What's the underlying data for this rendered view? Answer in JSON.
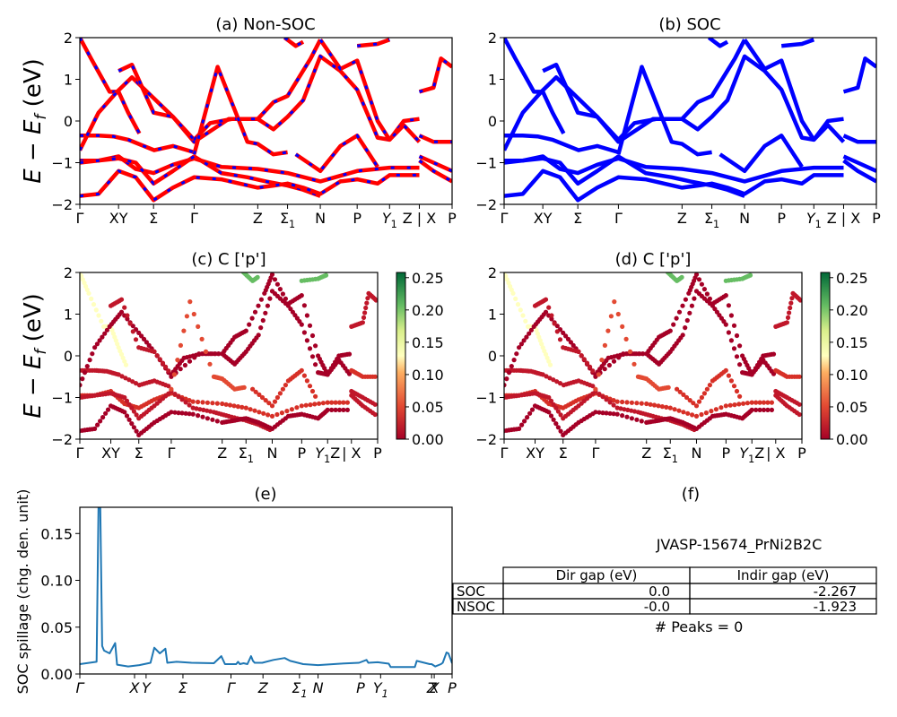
{
  "figure": {
    "ylabel_band": "E − E_f (eV)",
    "colors": {
      "nonsoc_solid": "#ff0000",
      "nonsoc_dash": "#0000ff",
      "soc": "#0000ff",
      "spillage": "#1f77b4"
    }
  },
  "chart_data": [
    {
      "id": "a",
      "type": "line",
      "title": "(a) Non-SOC",
      "ylabel": "E − E_f (eV)",
      "ylim": [
        -2,
        2
      ],
      "yticks": [
        -2,
        -1,
        0,
        1,
        2
      ],
      "xlim": [
        0,
        1
      ],
      "kpath_labels": [
        "Γ",
        "XY",
        "Σ",
        "Γ",
        "Z",
        "Σ1",
        "N",
        "P",
        "Y1",
        "Z | X",
        "P"
      ],
      "kpath_positions": [
        0.0,
        0.104,
        0.198,
        0.307,
        0.478,
        0.558,
        0.646,
        0.745,
        0.832,
        0.912,
        1.0
      ],
      "style": "red solid with blue dashes overlay",
      "bands": [
        {
          "x": [
            0,
            0.05,
            0.09,
            0.13,
            0.2,
            0.25,
            0.307
          ],
          "y": [
            -0.35,
            -0.35,
            -0.37,
            -0.45,
            -0.7,
            -0.6,
            -0.75
          ]
        },
        {
          "x": [
            0,
            0.05,
            0.104,
            0.15,
            0.198,
            0.25,
            0.307,
            0.38,
            0.478,
            0.558,
            0.646,
            0.745,
            0.832,
            0.912
          ],
          "y": [
            -0.95,
            -0.95,
            -0.85,
            -1.15,
            -1.25,
            -1.05,
            -0.9,
            -1.1,
            -1.15,
            -1.25,
            -1.45,
            -1.2,
            -1.12,
            -1.12
          ]
        },
        {
          "x": [
            0,
            0.05,
            0.104,
            0.15,
            0.198,
            0.25,
            0.307,
            0.38,
            0.45,
            0.5,
            0.558,
            0.6,
            0.646
          ],
          "y": [
            -1.0,
            -0.95,
            -0.9,
            -1.0,
            -1.5,
            -1.2,
            -0.85,
            -1.25,
            -1.35,
            -1.45,
            -1.55,
            -1.65,
            -1.8
          ]
        },
        {
          "x": [
            0,
            0.05,
            0.104,
            0.15,
            0.198,
            0.25,
            0.307,
            0.38,
            0.478,
            0.52,
            0.558,
            0.6,
            0.646,
            0.7,
            0.745,
            0.8,
            0.832,
            0.912
          ],
          "y": [
            -1.8,
            -1.75,
            -1.2,
            -1.35,
            -1.9,
            -1.6,
            -1.35,
            -1.4,
            -1.6,
            -1.55,
            -1.5,
            -1.6,
            -1.75,
            -1.45,
            -1.4,
            -1.5,
            -1.3,
            -1.3
          ]
        },
        {
          "x": [
            0,
            0.03,
            0.08,
            0.104,
            0.13,
            0.16
          ],
          "y": [
            2,
            1.5,
            0.7,
            0.7,
            0.2,
            -0.3
          ]
        },
        {
          "x": [
            0,
            0.05,
            0.1,
            0.14,
            0.198,
            0.25,
            0.307,
            0.4,
            0.478,
            0.52,
            0.558,
            0.62,
            0.646
          ],
          "y": [
            -0.7,
            0.2,
            0.7,
            1.05,
            0.55,
            0.1,
            -0.5,
            0.05,
            0.05,
            0.45,
            0.6,
            1.5,
            1.95
          ]
        },
        {
          "x": [
            0.104,
            0.14,
            0.198,
            0.25,
            0.307
          ],
          "y": [
            1.2,
            1.35,
            0.2,
            0.1,
            -0.45
          ]
        },
        {
          "x": [
            0.307,
            0.35,
            0.41,
            0.478,
            0.52,
            0.558,
            0.6,
            0.646,
            0.7,
            0.745,
            0.8,
            0.832,
            0.87,
            0.912
          ],
          "y": [
            -0.45,
            -0.05,
            0.05,
            0.05,
            -0.2,
            0.1,
            0.5,
            1.55,
            1.2,
            0.75,
            -0.4,
            -0.45,
            0,
            0.05
          ]
        },
        {
          "x": [
            0.307,
            0.37,
            0.45,
            0.478,
            0.52,
            0.558
          ],
          "y": [
            -0.8,
            1.3,
            -0.5,
            -0.55,
            -0.8,
            -0.75
          ]
        },
        {
          "x": [
            0.646,
            0.7,
            0.745,
            0.8,
            0.832,
            0.87,
            0.912
          ],
          "y": [
            1.95,
            1.25,
            1.45,
            0.0,
            -0.45,
            -0.1,
            -0.5
          ]
        },
        {
          "x": [
            0.58,
            0.646,
            0.7,
            0.745,
            0.8
          ],
          "y": [
            -0.8,
            -1.2,
            -0.6,
            -0.35,
            -1.1
          ]
        },
        {
          "x": [
            0.912,
            0.95,
            0.97,
            1.0
          ],
          "y": [
            0.7,
            0.8,
            1.5,
            1.3
          ]
        },
        {
          "x": [
            0.912,
            0.95,
            1.0
          ],
          "y": [
            -0.35,
            -0.5,
            -0.5
          ]
        },
        {
          "x": [
            0.912,
            0.95,
            1.0
          ],
          "y": [
            -0.85,
            -1.0,
            -1.2
          ]
        },
        {
          "x": [
            0.912,
            0.95,
            1.0
          ],
          "y": [
            -0.95,
            -1.2,
            -1.45
          ]
        },
        {
          "x": [
            0.55,
            0.58,
            0.6
          ],
          "y": [
            2,
            1.8,
            1.9
          ]
        },
        {
          "x": [
            0.745,
            0.8,
            0.832
          ],
          "y": [
            1.8,
            1.85,
            1.95
          ]
        }
      ]
    },
    {
      "id": "b",
      "type": "line",
      "title": "(b) SOC",
      "ylim": [
        -2,
        2
      ],
      "yticks": [
        -2,
        -1,
        0,
        1,
        2
      ],
      "kpath_labels": [
        "Γ",
        "XY",
        "Σ",
        "Γ",
        "Z",
        "Σ1",
        "N",
        "P",
        "Y1",
        "Z | X",
        "P"
      ],
      "style": "blue solid",
      "bands_same_as": "a"
    },
    {
      "id": "c",
      "type": "scatter",
      "title": "(c)  C ['p']",
      "ylabel": "E − E_f (eV)",
      "ylim": [
        -2,
        2
      ],
      "yticks": [
        -2,
        -1,
        0,
        1,
        2
      ],
      "kpath_labels": [
        "Γ",
        "XY",
        "Σ",
        "Γ",
        "Z",
        "Σ1",
        "N",
        "P",
        "Y1Z",
        "| X",
        "P"
      ],
      "colorbar": {
        "cmap": "RdYlGn",
        "min": 0.0,
        "max": 0.25,
        "ticks": [
          "0.00",
          "0.05",
          "0.10",
          "0.15",
          "0.20",
          "0.25"
        ]
      },
      "bands_same_as": "a"
    },
    {
      "id": "d",
      "type": "scatter",
      "title": "(d) C ['p']",
      "ylim": [
        -2,
        2
      ],
      "yticks": [
        -2,
        -1,
        0,
        1,
        2
      ],
      "kpath_labels": [
        "Γ",
        "XY",
        "Σ",
        "Γ",
        "Z",
        "Σ1",
        "N",
        "P",
        "Y1Z",
        "| X",
        "P"
      ],
      "colorbar": {
        "cmap": "RdYlGn",
        "min": 0.0,
        "max": 0.25,
        "ticks": [
          "0.00",
          "0.05",
          "0.10",
          "0.15",
          "0.20",
          "0.25"
        ]
      },
      "bands_same_as": "a"
    },
    {
      "id": "e",
      "type": "line",
      "title": "(e)",
      "ylabel": "SOC spillage (chg. den. unit)",
      "ylim": [
        0,
        0.178
      ],
      "yticks": [
        "0.00",
        "0.05",
        "0.10",
        "0.15"
      ],
      "kpath_labels": [
        "Γ",
        "X",
        "Y",
        "Σ",
        "Γ",
        "Z",
        "Σ1",
        "N",
        "P",
        "Y1",
        "Z",
        "X",
        "P"
      ],
      "kpath_positions": [
        0.0,
        0.147,
        0.178,
        0.277,
        0.406,
        0.492,
        0.59,
        0.64,
        0.754,
        0.808,
        0.945,
        0.952,
        1.0
      ],
      "x": [
        0,
        0.045,
        0.05,
        0.055,
        0.06,
        0.065,
        0.08,
        0.095,
        0.1,
        0.13,
        0.16,
        0.19,
        0.2,
        0.215,
        0.23,
        0.235,
        0.26,
        0.3,
        0.36,
        0.38,
        0.39,
        0.4,
        0.42,
        0.425,
        0.43,
        0.44,
        0.45,
        0.46,
        0.465,
        0.47,
        0.49,
        0.52,
        0.55,
        0.565,
        0.575,
        0.6,
        0.64,
        0.7,
        0.75,
        0.77,
        0.775,
        0.8,
        0.83,
        0.835,
        0.9,
        0.905,
        0.94,
        0.945,
        0.955,
        0.97,
        0.975,
        0.985,
        0.99,
        1.0
      ],
      "y": [
        0.0105,
        0.013,
        0.178,
        0.178,
        0.03,
        0.025,
        0.022,
        0.033,
        0.01,
        0.008,
        0.0095,
        0.012,
        0.028,
        0.022,
        0.027,
        0.012,
        0.013,
        0.012,
        0.0115,
        0.019,
        0.0105,
        0.0105,
        0.0105,
        0.013,
        0.0105,
        0.0115,
        0.0105,
        0.019,
        0.014,
        0.012,
        0.012,
        0.015,
        0.017,
        0.014,
        0.013,
        0.0105,
        0.0095,
        0.011,
        0.012,
        0.015,
        0.012,
        0.0125,
        0.011,
        0.0075,
        0.0075,
        0.014,
        0.0105,
        0.0105,
        0.008,
        0.0105,
        0.012,
        0.023,
        0.022,
        0.0115
      ]
    }
  ],
  "panel_f": {
    "title": "(f)",
    "subtitle": "JVASP-15674_PrNi2B2C",
    "table": {
      "columns": [
        "",
        "Dir gap (eV)",
        "Indir gap (eV)"
      ],
      "rows": [
        {
          "label": "SOC",
          "dir": "0.0",
          "indir": "-2.267"
        },
        {
          "label": "NSOC",
          "dir": "-0.0",
          "indir": "-1.923"
        }
      ]
    },
    "peaks_text": "# Peaks = 0"
  }
}
